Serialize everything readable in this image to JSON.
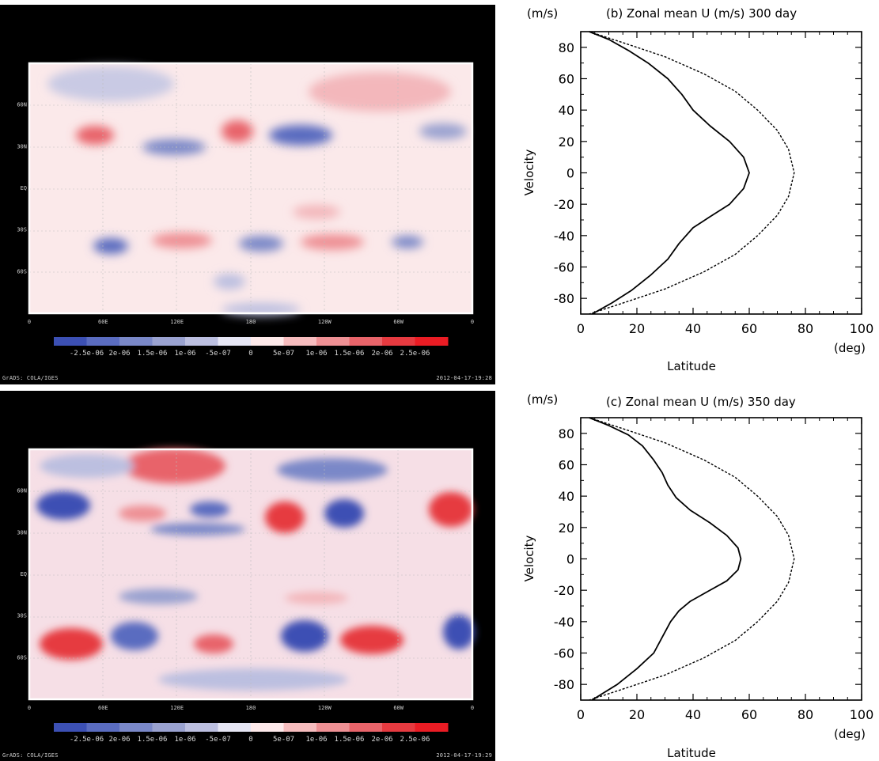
{
  "maps": [
    {
      "id": "top",
      "x_ticks": [
        "0",
        "60E",
        "120E",
        "180",
        "120W",
        "60W",
        "0"
      ],
      "y_ticks": [
        "60N",
        "30N",
        "EQ",
        "30S",
        "60S"
      ],
      "colorbar_labels": [
        "-2.5e-06",
        "2e-06",
        "1.5e-06",
        "1e-06",
        "-5e-07",
        "0",
        "5e-07",
        "1e-06",
        "1.5e-06",
        "2e-06",
        "2.5e-06"
      ],
      "footer_left": "GrADS: COLA/IGES",
      "footer_right": "2012-04-17-19:28"
    },
    {
      "id": "bottom",
      "x_ticks": [
        "0",
        "60E",
        "120E",
        "180",
        "120W",
        "60W",
        "0"
      ],
      "y_ticks": [
        "60N",
        "30N",
        "EQ",
        "30S",
        "60S"
      ],
      "colorbar_labels": [
        "-2.5e-06",
        "2e-06",
        "1.5e-06",
        "1e-06",
        "-5e-07",
        "0",
        "5e-07",
        "1e-06",
        "1.5e-06",
        "2e-06",
        "2.5e-06"
      ],
      "footer_left": "GrADS: COLA/IGES",
      "footer_right": "2012-04-17-19:29"
    }
  ],
  "colorbar_colors": [
    "#3c50b4",
    "#5a6cc0",
    "#7a88c8",
    "#9aa2d0",
    "#bcbfe0",
    "#e6e6f4",
    "#fde9ea",
    "#f6bcbe",
    "#ee9094",
    "#e8646a",
    "#e63a40",
    "#ea1c24"
  ],
  "chart_data": [
    {
      "type": "line",
      "title": "(b) Zonal mean U (m/s) 300 day",
      "unit_y": "(m/s)",
      "unit_x": "(deg)",
      "xlabel": "Latitude",
      "ylabel": "Velocity",
      "xlim": [
        0,
        100
      ],
      "ylim": [
        -90,
        90
      ],
      "x_ticks": [
        0,
        20,
        40,
        60,
        80,
        100
      ],
      "y_ticks": [
        -80,
        -60,
        -40,
        -20,
        0,
        20,
        40,
        60,
        80
      ],
      "series": [
        {
          "style": "solid",
          "points": [
            [
              3,
              90
            ],
            [
              10,
              85
            ],
            [
              17,
              78
            ],
            [
              24,
              70
            ],
            [
              31,
              60
            ],
            [
              36,
              50
            ],
            [
              40,
              40
            ],
            [
              46,
              30
            ],
            [
              53,
              20
            ],
            [
              58,
              10
            ],
            [
              60,
              0
            ],
            [
              58,
              -10
            ],
            [
              53,
              -20
            ],
            [
              46,
              -28
            ],
            [
              40,
              -35
            ],
            [
              35,
              -45
            ],
            [
              31,
              -55
            ],
            [
              25,
              -65
            ],
            [
              18,
              -75
            ],
            [
              11,
              -83
            ],
            [
              4,
              -90
            ]
          ]
        },
        {
          "style": "dashed",
          "points": [
            [
              3,
              90
            ],
            [
              15,
              83
            ],
            [
              30,
              74
            ],
            [
              44,
              63
            ],
            [
              55,
              52
            ],
            [
              63,
              40
            ],
            [
              70,
              27
            ],
            [
              74,
              15
            ],
            [
              76,
              0
            ],
            [
              74,
              -15
            ],
            [
              70,
              -27
            ],
            [
              63,
              -40
            ],
            [
              55,
              -52
            ],
            [
              44,
              -63
            ],
            [
              30,
              -74
            ],
            [
              15,
              -83
            ],
            [
              3,
              -90
            ]
          ]
        }
      ]
    },
    {
      "type": "line",
      "title": "(c) Zonal mean U (m/s) 350 day",
      "unit_y": "(m/s)",
      "unit_x": "(deg)",
      "xlabel": "Latitude",
      "ylabel": "Velocity",
      "xlim": [
        0,
        100
      ],
      "ylim": [
        -90,
        90
      ],
      "x_ticks": [
        0,
        20,
        40,
        60,
        80,
        100
      ],
      "y_ticks": [
        -80,
        -60,
        -40,
        -20,
        0,
        20,
        40,
        60,
        80
      ],
      "series": [
        {
          "style": "solid",
          "points": [
            [
              3,
              90
            ],
            [
              10,
              85
            ],
            [
              17,
              79
            ],
            [
              22,
              72
            ],
            [
              26,
              63
            ],
            [
              29,
              55
            ],
            [
              31,
              47
            ],
            [
              34,
              39
            ],
            [
              39,
              31
            ],
            [
              46,
              23
            ],
            [
              52,
              15
            ],
            [
              56,
              7
            ],
            [
              57,
              0
            ],
            [
              56,
              -7
            ],
            [
              52,
              -14
            ],
            [
              45,
              -21
            ],
            [
              39,
              -27
            ],
            [
              35,
              -33
            ],
            [
              32,
              -40
            ],
            [
              29,
              -50
            ],
            [
              26,
              -60
            ],
            [
              20,
              -70
            ],
            [
              13,
              -80
            ],
            [
              4,
              -90
            ]
          ]
        },
        {
          "style": "dashed",
          "points": [
            [
              3,
              90
            ],
            [
              15,
              83
            ],
            [
              30,
              74
            ],
            [
              44,
              63
            ],
            [
              55,
              52
            ],
            [
              63,
              40
            ],
            [
              70,
              27
            ],
            [
              74,
              15
            ],
            [
              76,
              0
            ],
            [
              74,
              -15
            ],
            [
              70,
              -27
            ],
            [
              63,
              -40
            ],
            [
              55,
              -52
            ],
            [
              44,
              -63
            ],
            [
              30,
              -74
            ],
            [
              15,
              -83
            ],
            [
              3,
              -90
            ]
          ]
        }
      ]
    }
  ]
}
